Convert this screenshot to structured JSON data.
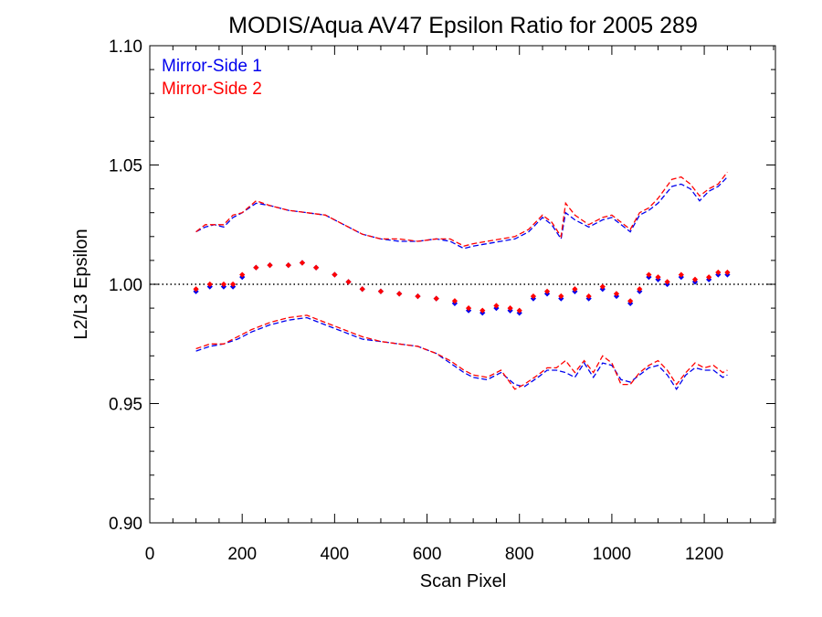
{
  "chart_data": {
    "type": "scatter",
    "title": "MODIS/Aqua AV47 Epsilon Ratio for 2005 289",
    "xlabel": "Scan Pixel",
    "ylabel": "L2/L3 Epsilon",
    "xlim": [
      0,
      1354
    ],
    "ylim": [
      0.9,
      1.1
    ],
    "x_ticks": [
      0,
      200,
      400,
      600,
      800,
      1000,
      1200
    ],
    "x_tick_labels": [
      "0",
      "200",
      "400",
      "600",
      "800",
      "1000",
      "1200"
    ],
    "y_ticks": [
      0.9,
      0.95,
      1.0,
      1.05,
      1.1
    ],
    "y_tick_labels": [
      "0.90",
      "0.95",
      "1.00",
      "1.05",
      "1.10"
    ],
    "reference_line": 1.0,
    "legend_placement": "top-left",
    "grid": false,
    "series": [
      {
        "name": "Mirror-Side 1",
        "color": "#0000ee",
        "mean_points": [
          [
            100,
            0.997
          ],
          [
            130,
            0.999
          ],
          [
            160,
            0.999
          ],
          [
            180,
            0.999
          ],
          [
            200,
            1.003
          ],
          [
            230,
            1.007
          ],
          [
            260,
            1.008
          ],
          [
            300,
            1.008
          ],
          [
            330,
            1.009
          ],
          [
            360,
            1.007
          ],
          [
            400,
            1.004
          ],
          [
            430,
            1.001
          ],
          [
            460,
            0.998
          ],
          [
            500,
            0.997
          ],
          [
            540,
            0.996
          ],
          [
            580,
            0.995
          ],
          [
            620,
            0.994
          ],
          [
            660,
            0.992
          ],
          [
            690,
            0.989
          ],
          [
            720,
            0.988
          ],
          [
            750,
            0.99
          ],
          [
            780,
            0.989
          ],
          [
            800,
            0.988
          ],
          [
            830,
            0.994
          ],
          [
            860,
            0.996
          ],
          [
            890,
            0.994
          ],
          [
            920,
            0.997
          ],
          [
            950,
            0.994
          ],
          [
            980,
            0.998
          ],
          [
            1010,
            0.995
          ],
          [
            1040,
            0.992
          ],
          [
            1060,
            0.997
          ],
          [
            1080,
            1.003
          ],
          [
            1100,
            1.002
          ],
          [
            1120,
            1.0
          ],
          [
            1150,
            1.003
          ],
          [
            1180,
            1.001
          ],
          [
            1210,
            1.002
          ],
          [
            1230,
            1.004
          ],
          [
            1250,
            1.004
          ]
        ],
        "upper_bound": [
          [
            100,
            1.022
          ],
          [
            120,
            1.024
          ],
          [
            140,
            1.025
          ],
          [
            160,
            1.024
          ],
          [
            180,
            1.028
          ],
          [
            200,
            1.03
          ],
          [
            230,
            1.034
          ],
          [
            260,
            1.033
          ],
          [
            300,
            1.031
          ],
          [
            340,
            1.03
          ],
          [
            380,
            1.029
          ],
          [
            420,
            1.025
          ],
          [
            460,
            1.021
          ],
          [
            500,
            1.019
          ],
          [
            540,
            1.018
          ],
          [
            580,
            1.018
          ],
          [
            620,
            1.019
          ],
          [
            650,
            1.018
          ],
          [
            680,
            1.015
          ],
          [
            700,
            1.016
          ],
          [
            730,
            1.017
          ],
          [
            760,
            1.018
          ],
          [
            790,
            1.019
          ],
          [
            820,
            1.022
          ],
          [
            850,
            1.028
          ],
          [
            870,
            1.025
          ],
          [
            890,
            1.019
          ],
          [
            900,
            1.03
          ],
          [
            920,
            1.027
          ],
          [
            950,
            1.024
          ],
          [
            980,
            1.027
          ],
          [
            1000,
            1.028
          ],
          [
            1020,
            1.025
          ],
          [
            1040,
            1.022
          ],
          [
            1060,
            1.029
          ],
          [
            1080,
            1.031
          ],
          [
            1100,
            1.034
          ],
          [
            1130,
            1.041
          ],
          [
            1150,
            1.042
          ],
          [
            1170,
            1.04
          ],
          [
            1190,
            1.035
          ],
          [
            1210,
            1.039
          ],
          [
            1230,
            1.041
          ],
          [
            1250,
            1.045
          ]
        ],
        "lower_bound": [
          [
            100,
            0.972
          ],
          [
            130,
            0.974
          ],
          [
            160,
            0.975
          ],
          [
            190,
            0.977
          ],
          [
            220,
            0.98
          ],
          [
            260,
            0.983
          ],
          [
            300,
            0.985
          ],
          [
            340,
            0.986
          ],
          [
            380,
            0.983
          ],
          [
            420,
            0.98
          ],
          [
            460,
            0.977
          ],
          [
            500,
            0.976
          ],
          [
            540,
            0.975
          ],
          [
            580,
            0.974
          ],
          [
            620,
            0.971
          ],
          [
            650,
            0.967
          ],
          [
            680,
            0.963
          ],
          [
            700,
            0.961
          ],
          [
            730,
            0.96
          ],
          [
            760,
            0.963
          ],
          [
            790,
            0.958
          ],
          [
            810,
            0.957
          ],
          [
            840,
            0.961
          ],
          [
            860,
            0.964
          ],
          [
            880,
            0.964
          ],
          [
            900,
            0.963
          ],
          [
            920,
            0.961
          ],
          [
            940,
            0.967
          ],
          [
            960,
            0.961
          ],
          [
            980,
            0.967
          ],
          [
            1000,
            0.966
          ],
          [
            1020,
            0.96
          ],
          [
            1040,
            0.959
          ],
          [
            1060,
            0.962
          ],
          [
            1080,
            0.965
          ],
          [
            1100,
            0.966
          ],
          [
            1120,
            0.962
          ],
          [
            1140,
            0.956
          ],
          [
            1160,
            0.962
          ],
          [
            1180,
            0.965
          ],
          [
            1200,
            0.964
          ],
          [
            1220,
            0.964
          ],
          [
            1240,
            0.961
          ],
          [
            1250,
            0.962
          ]
        ]
      },
      {
        "name": "Mirror-Side 2",
        "color": "#ff0000",
        "mean_points": [
          [
            100,
            0.998
          ],
          [
            130,
            1.0
          ],
          [
            160,
            1.0
          ],
          [
            180,
            1.0
          ],
          [
            200,
            1.004
          ],
          [
            230,
            1.007
          ],
          [
            260,
            1.008
          ],
          [
            300,
            1.008
          ],
          [
            330,
            1.009
          ],
          [
            360,
            1.007
          ],
          [
            400,
            1.004
          ],
          [
            430,
            1.001
          ],
          [
            460,
            0.998
          ],
          [
            500,
            0.997
          ],
          [
            540,
            0.996
          ],
          [
            580,
            0.995
          ],
          [
            620,
            0.994
          ],
          [
            660,
            0.993
          ],
          [
            690,
            0.99
          ],
          [
            720,
            0.989
          ],
          [
            750,
            0.991
          ],
          [
            780,
            0.99
          ],
          [
            800,
            0.989
          ],
          [
            830,
            0.995
          ],
          [
            860,
            0.997
          ],
          [
            890,
            0.995
          ],
          [
            920,
            0.998
          ],
          [
            950,
            0.995
          ],
          [
            980,
            0.999
          ],
          [
            1010,
            0.996
          ],
          [
            1040,
            0.993
          ],
          [
            1060,
            0.998
          ],
          [
            1080,
            1.004
          ],
          [
            1100,
            1.003
          ],
          [
            1120,
            1.001
          ],
          [
            1150,
            1.004
          ],
          [
            1180,
            1.002
          ],
          [
            1210,
            1.003
          ],
          [
            1230,
            1.005
          ],
          [
            1250,
            1.005
          ]
        ],
        "upper_bound": [
          [
            100,
            1.022
          ],
          [
            120,
            1.025
          ],
          [
            140,
            1.025
          ],
          [
            160,
            1.025
          ],
          [
            180,
            1.029
          ],
          [
            200,
            1.03
          ],
          [
            230,
            1.035
          ],
          [
            260,
            1.033
          ],
          [
            300,
            1.031
          ],
          [
            340,
            1.03
          ],
          [
            380,
            1.029
          ],
          [
            420,
            1.025
          ],
          [
            460,
            1.021
          ],
          [
            500,
            1.019
          ],
          [
            540,
            1.019
          ],
          [
            580,
            1.018
          ],
          [
            620,
            1.019
          ],
          [
            650,
            1.019
          ],
          [
            680,
            1.016
          ],
          [
            700,
            1.017
          ],
          [
            730,
            1.018
          ],
          [
            760,
            1.019
          ],
          [
            790,
            1.02
          ],
          [
            820,
            1.023
          ],
          [
            850,
            1.029
          ],
          [
            870,
            1.026
          ],
          [
            890,
            1.02
          ],
          [
            900,
            1.034
          ],
          [
            920,
            1.029
          ],
          [
            950,
            1.025
          ],
          [
            980,
            1.028
          ],
          [
            1000,
            1.029
          ],
          [
            1020,
            1.026
          ],
          [
            1040,
            1.023
          ],
          [
            1060,
            1.03
          ],
          [
            1080,
            1.032
          ],
          [
            1100,
            1.036
          ],
          [
            1130,
            1.044
          ],
          [
            1150,
            1.045
          ],
          [
            1170,
            1.042
          ],
          [
            1190,
            1.037
          ],
          [
            1210,
            1.04
          ],
          [
            1230,
            1.042
          ],
          [
            1250,
            1.047
          ]
        ],
        "lower_bound": [
          [
            100,
            0.973
          ],
          [
            130,
            0.975
          ],
          [
            160,
            0.975
          ],
          [
            190,
            0.978
          ],
          [
            220,
            0.981
          ],
          [
            260,
            0.984
          ],
          [
            300,
            0.986
          ],
          [
            340,
            0.987
          ],
          [
            380,
            0.984
          ],
          [
            420,
            0.981
          ],
          [
            460,
            0.978
          ],
          [
            500,
            0.976
          ],
          [
            540,
            0.975
          ],
          [
            580,
            0.974
          ],
          [
            620,
            0.971
          ],
          [
            650,
            0.968
          ],
          [
            680,
            0.964
          ],
          [
            700,
            0.962
          ],
          [
            730,
            0.961
          ],
          [
            760,
            0.964
          ],
          [
            790,
            0.956
          ],
          [
            810,
            0.958
          ],
          [
            840,
            0.962
          ],
          [
            860,
            0.965
          ],
          [
            880,
            0.965
          ],
          [
            900,
            0.968
          ],
          [
            920,
            0.963
          ],
          [
            940,
            0.968
          ],
          [
            960,
            0.963
          ],
          [
            980,
            0.97
          ],
          [
            1000,
            0.967
          ],
          [
            1020,
            0.958
          ],
          [
            1040,
            0.958
          ],
          [
            1060,
            0.963
          ],
          [
            1080,
            0.966
          ],
          [
            1100,
            0.968
          ],
          [
            1120,
            0.964
          ],
          [
            1140,
            0.958
          ],
          [
            1160,
            0.963
          ],
          [
            1180,
            0.967
          ],
          [
            1200,
            0.965
          ],
          [
            1220,
            0.966
          ],
          [
            1240,
            0.963
          ],
          [
            1250,
            0.964
          ]
        ]
      }
    ]
  }
}
